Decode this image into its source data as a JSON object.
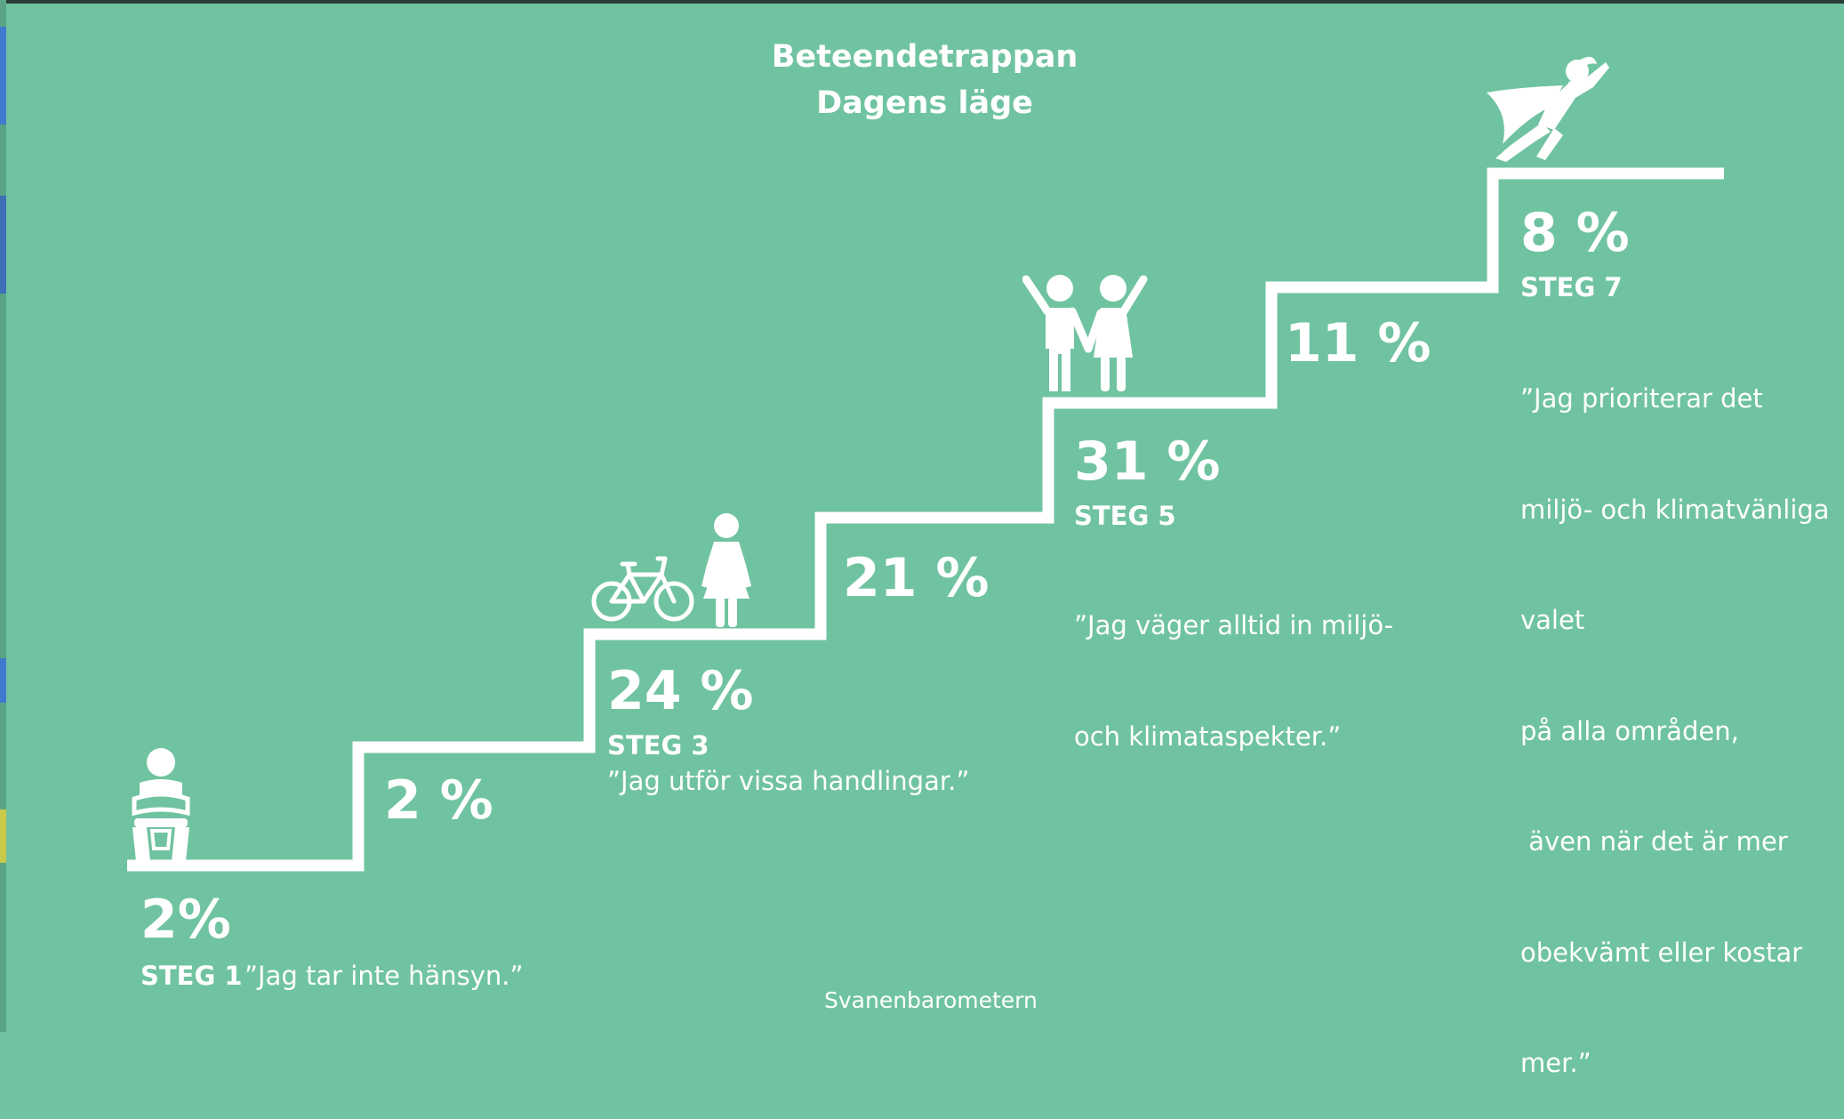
{
  "title": {
    "line1": "Beteendetrappan",
    "line2": "Dagens läge"
  },
  "steps": [
    {
      "percent": "2%",
      "label": "STEG 1",
      "quote": "”Jag tar inte hänsyn.”"
    },
    {
      "percent": "2 %"
    },
    {
      "percent": "24 %",
      "label": "STEG 3",
      "quote": "”Jag utför vissa handlingar.”"
    },
    {
      "percent": "21 %"
    },
    {
      "percent": "31 %",
      "label": "STEG 5",
      "quote_lines": [
        "”Jag väger alltid in miljö-",
        "och klimataspekter.”"
      ]
    },
    {
      "percent": "11 %"
    },
    {
      "percent": "8 %",
      "label": "STEG 7",
      "quote_lines": [
        "”Jag prioriterar det",
        "miljö- och klimatvänliga",
        "valet",
        "på alla områden,",
        " även när det är mer",
        "obekvämt eller kostar",
        "mer.”"
      ]
    }
  ],
  "source": "Svanenbarometern",
  "icons": {
    "step1": "seated-person-icon",
    "step3": [
      "bicycle-icon",
      "woman-icon"
    ],
    "step5": "couple-icon",
    "step7": "superhero-icon"
  },
  "colors": {
    "background": "#70c3a1",
    "foreground": "#ffffff"
  }
}
